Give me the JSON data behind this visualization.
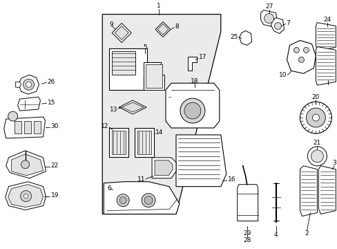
{
  "bg_color": "#ffffff",
  "panel_bg": "#e8e8e8",
  "lc": "#000000",
  "fs": 6.5,
  "fig_width": 4.89,
  "fig_height": 3.6,
  "dpi": 100
}
